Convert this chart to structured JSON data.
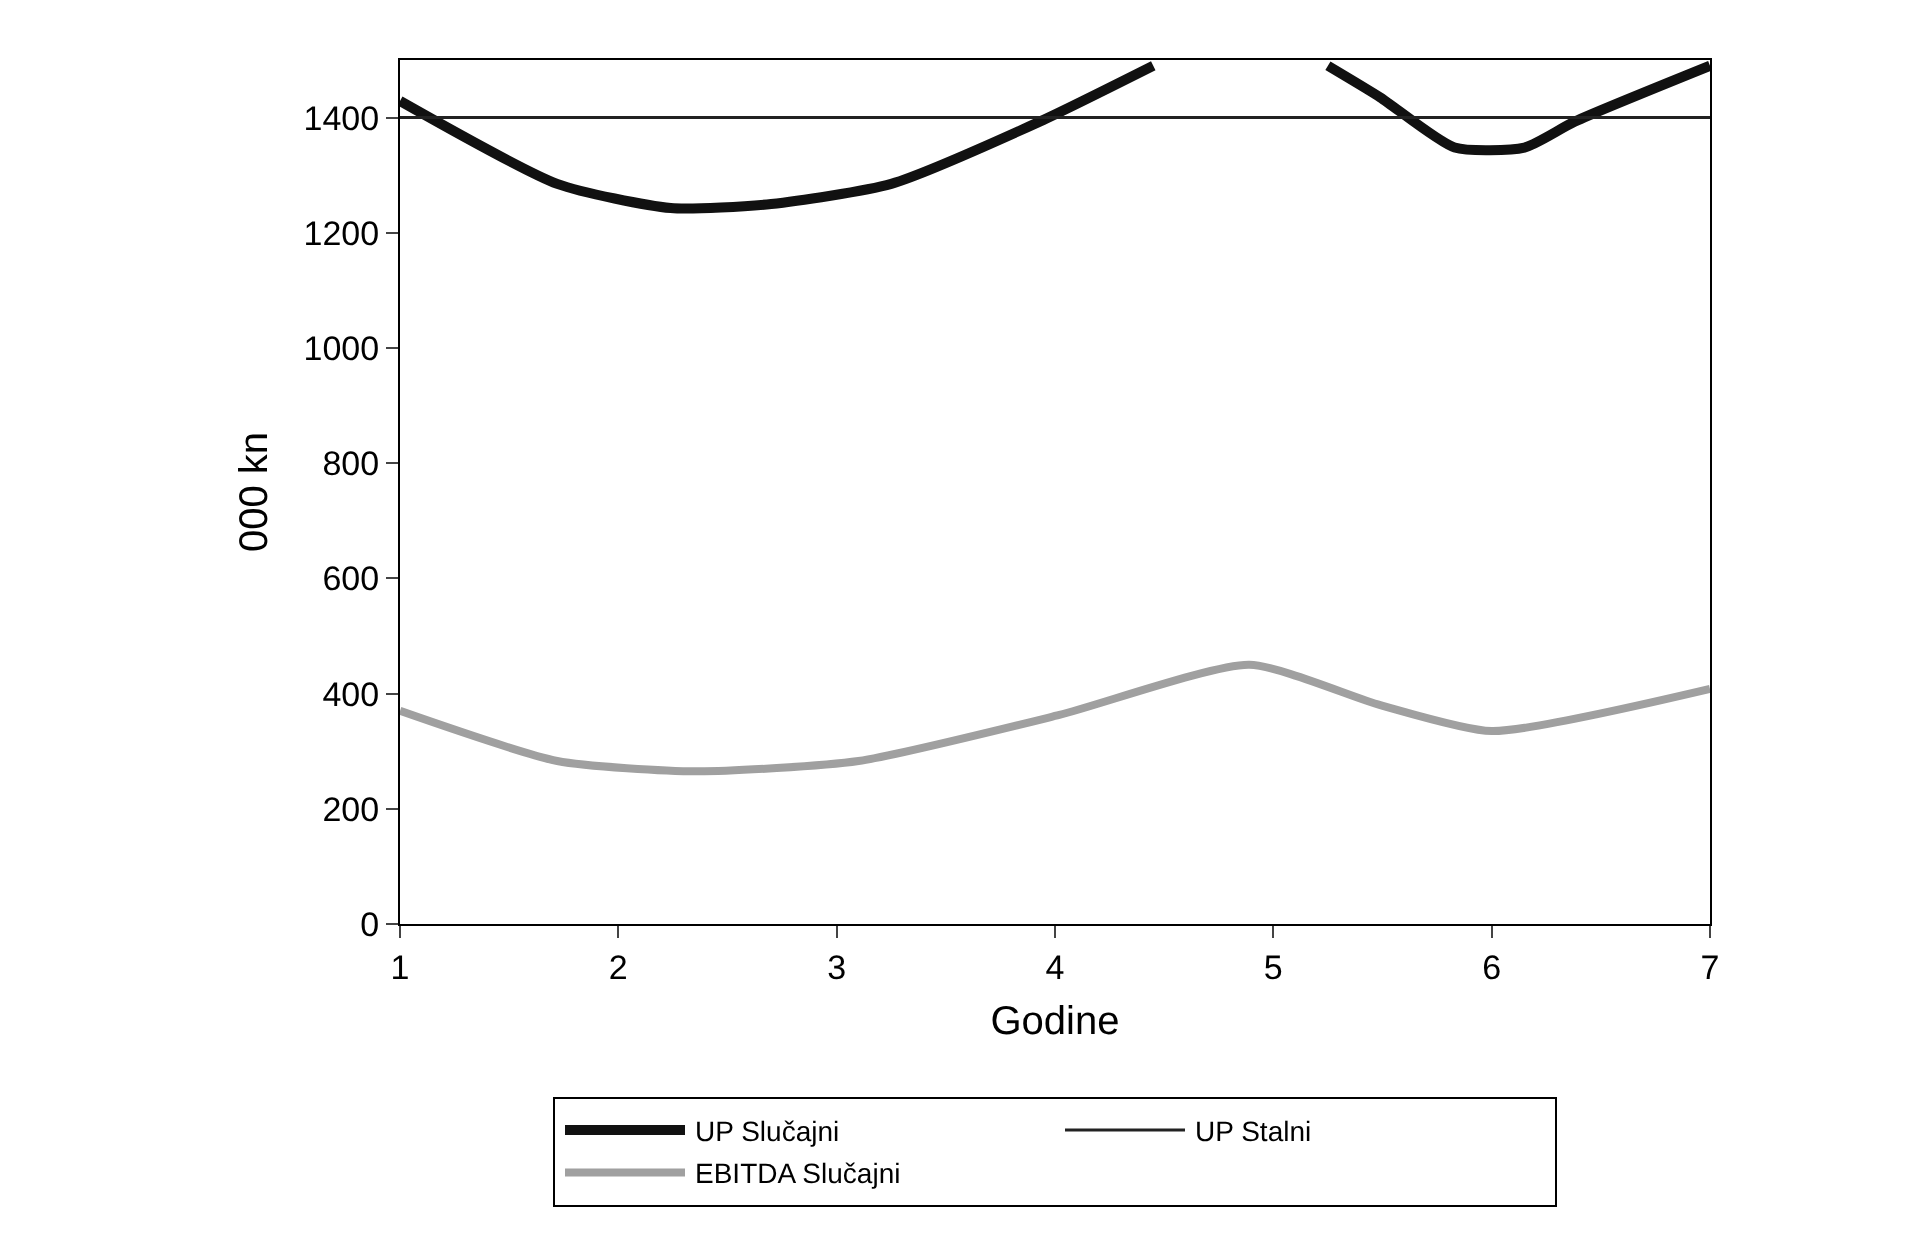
{
  "chart_data": {
    "type": "line",
    "xlabel": "Godine",
    "ylabel": "000 kn",
    "xlim": [
      1,
      7
    ],
    "xticks": [
      1,
      2,
      3,
      4,
      5,
      6,
      7
    ],
    "ylim": [
      0,
      1500
    ],
    "yticks": [
      0,
      200,
      400,
      600,
      800,
      1000,
      1200,
      1400
    ],
    "grid": false,
    "legend": "bottom",
    "marker": "none",
    "line_style": "solid",
    "series": [
      {
        "name": "UP Slučajni",
        "color": "#111111",
        "x": [
          1,
          1.72,
          2.24,
          2.7,
          3.25,
          3.93,
          4.45,
          4.9,
          5.25,
          5.49,
          5.83,
          6.15,
          6.38,
          7
        ],
        "values": [
          1429,
          1285,
          1243,
          1250,
          1285,
          1393,
          1490,
          null,
          1490,
          1435,
          1348,
          1348,
          1393,
          1490
        ]
      },
      {
        "name": "UP Stalni",
        "color": "#222222",
        "x": [
          1,
          7
        ],
        "values": [
          1400,
          1400
        ]
      },
      {
        "name": "EBITDA Slučajni",
        "color": "#a0a0a0",
        "x": [
          1,
          1.72,
          2.36,
          3.1,
          4.02,
          4.89,
          5.49,
          6,
          7
        ],
        "values": [
          370,
          283,
          265,
          283,
          363,
          450,
          380,
          335,
          408
        ]
      }
    ]
  }
}
